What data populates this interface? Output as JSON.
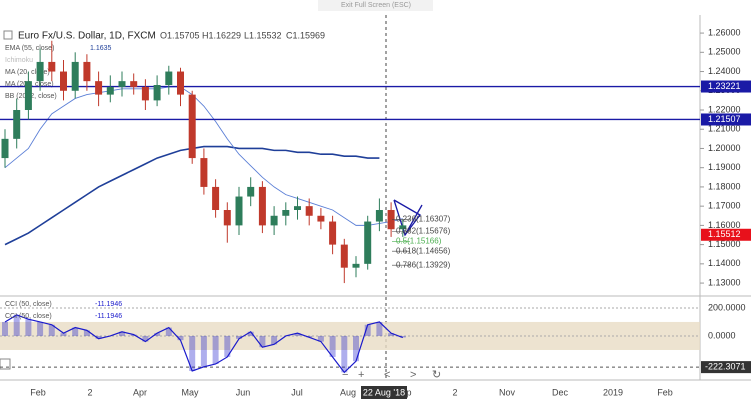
{
  "chart_data": {
    "type": "candlestick",
    "fullscreen_hint": "Exit Full Screen (ESC)",
    "title": "Euro Fx/U.S. Dollar, 1D, FXCM",
    "ohlc_readout": [
      "O1.15705",
      "H1.16229",
      "L1.15532",
      "C1.15969"
    ],
    "indicator_legend": [
      {
        "name": "EMA (55, close)",
        "value_label": "1.1635"
      },
      {
        "name": "Ichimoku"
      },
      {
        "name": "MA (20, close)"
      },
      {
        "name": "MA (200, close)"
      },
      {
        "name": "BB (20, 2, close)"
      }
    ],
    "up_color": "#2e7d5b",
    "down_color": "#c0392b",
    "open": [
      1.195,
      1.205,
      1.22,
      1.235,
      1.245,
      1.24,
      1.23,
      1.245,
      1.235,
      1.228,
      1.232,
      1.235,
      1.232,
      1.225,
      1.233,
      1.24,
      1.228,
      1.195,
      1.18,
      1.168,
      1.16,
      1.175,
      1.18,
      1.16,
      1.165,
      1.168,
      1.17,
      1.165,
      1.162,
      1.15,
      1.138,
      1.14,
      1.162,
      1.168,
      1.158
    ],
    "high": [
      1.21,
      1.226,
      1.24,
      1.252,
      1.256,
      1.246,
      1.25,
      1.249,
      1.24,
      1.238,
      1.24,
      1.239,
      1.236,
      1.238,
      1.243,
      1.242,
      1.23,
      1.2,
      1.184,
      1.172,
      1.18,
      1.185,
      1.183,
      1.17,
      1.172,
      1.175,
      1.174,
      1.169,
      1.165,
      1.153,
      1.144,
      1.165,
      1.174,
      1.172,
      1.163
    ],
    "low": [
      1.19,
      1.2,
      1.215,
      1.23,
      1.235,
      1.225,
      1.226,
      1.23,
      1.222,
      1.224,
      1.227,
      1.228,
      1.22,
      1.222,
      1.228,
      1.222,
      1.192,
      1.176,
      1.164,
      1.151,
      1.155,
      1.17,
      1.156,
      1.155,
      1.16,
      1.163,
      1.16,
      1.158,
      1.145,
      1.13,
      1.133,
      1.137,
      1.157,
      1.154,
      1.154
    ],
    "close": [
      1.205,
      1.22,
      1.235,
      1.245,
      1.24,
      1.23,
      1.245,
      1.235,
      1.228,
      1.232,
      1.235,
      1.232,
      1.225,
      1.233,
      1.24,
      1.228,
      1.195,
      1.18,
      1.168,
      1.16,
      1.175,
      1.18,
      1.16,
      1.165,
      1.168,
      1.17,
      1.165,
      1.162,
      1.15,
      1.138,
      1.14,
      1.162,
      1.168,
      1.158,
      1.16
    ],
    "series": [
      {
        "name": "MA (200, close)",
        "color": "#1f3f99",
        "values": [
          1.15,
          1.153,
          1.156,
          1.16,
          1.164,
          1.168,
          1.172,
          1.176,
          1.18,
          1.183,
          1.186,
          1.189,
          1.192,
          1.195,
          1.197,
          1.199,
          1.2,
          1.201,
          1.201,
          1.201,
          1.2,
          1.2,
          1.2,
          1.199,
          1.199,
          1.198,
          1.198,
          1.197,
          1.197,
          1.196,
          1.196,
          1.195,
          1.195,
          null,
          null
        ]
      },
      {
        "name": "EMA (55, close)",
        "color": "#5b7fd6",
        "values": [
          1.19,
          1.195,
          1.2,
          1.21,
          1.218,
          1.222,
          1.226,
          1.228,
          1.229,
          1.23,
          1.231,
          1.231,
          1.231,
          1.231,
          1.232,
          1.232,
          1.228,
          1.222,
          1.214,
          1.205,
          1.197,
          1.191,
          1.185,
          1.18,
          1.176,
          1.174,
          1.172,
          1.17,
          1.168,
          1.164,
          1.16,
          1.16,
          1.161,
          1.162,
          1.1635
        ]
      }
    ],
    "ylim": [
      1.1238,
      1.2668
    ],
    "yticks": [
      {
        "value": 1.26,
        "label": "1.26000"
      },
      {
        "value": 1.25,
        "label": "1.25000"
      },
      {
        "value": 1.24,
        "label": "1.24000"
      },
      {
        "value": 1.23,
        "label": "1.23000"
      },
      {
        "value": 1.22,
        "label": "1.22000"
      },
      {
        "value": 1.21,
        "label": "1.21000"
      },
      {
        "value": 1.2,
        "label": "1.20000"
      },
      {
        "value": 1.19,
        "label": "1.19000"
      },
      {
        "value": 1.18,
        "label": "1.18000"
      },
      {
        "value": 1.17,
        "label": "1.17000"
      },
      {
        "value": 1.16,
        "label": "1.16000"
      },
      {
        "value": 1.15,
        "label": "1.15000"
      },
      {
        "value": 1.14,
        "label": "1.14000"
      },
      {
        "value": 1.13,
        "label": "1.13000"
      }
    ],
    "levels": [
      {
        "value": 1.23221,
        "label": "1.23221",
        "color": "#1a1aa6"
      },
      {
        "value": 1.21507,
        "label": "1.21507",
        "color": "#1a1aa6"
      }
    ],
    "last_price": {
      "value": 1.15512,
      "label": "1.15512",
      "color": "#e8111b"
    },
    "fib_levels": [
      {
        "value": 1.16307,
        "label": "0.236(1.16307)",
        "color": "#444"
      },
      {
        "value": 1.15676,
        "label": "0.382(1.15676)",
        "color": "#444"
      },
      {
        "value": 1.15166,
        "label": "0.5(1.15166)",
        "color": "#4caf50"
      },
      {
        "value": 1.14656,
        "label": "0.618(1.14656)",
        "color": "#444"
      },
      {
        "value": 1.13929,
        "label": "0.786(1.13929)",
        "color": "#444"
      }
    ],
    "oscillator": {
      "legend": [
        {
          "name": "CCI (50, close)",
          "value_label": "-11.1946"
        },
        {
          "name": "CCI (50, close)",
          "value_label": "-11.1946"
        }
      ],
      "color": "#1a1acc",
      "values": [
        100,
        150,
        120,
        100,
        80,
        20,
        60,
        40,
        -20,
        0,
        30,
        10,
        -40,
        20,
        60,
        -30,
        -250,
        -220,
        -200,
        -150,
        -20,
        30,
        -80,
        -60,
        0,
        20,
        -10,
        -40,
        -150,
        -260,
        -180,
        80,
        100,
        20,
        -11
      ],
      "ylim": [
        -300,
        271
      ],
      "yticks": [
        {
          "value": 200,
          "label": "200.0000"
        },
        {
          "value": 0,
          "label": "0.0000"
        }
      ],
      "band": [
        -100,
        100
      ],
      "level": {
        "value": -222.3071,
        "label": "-222.3071"
      }
    },
    "x_axis_labels": [
      "Feb",
      "2",
      "Apr",
      "May",
      "Jun",
      "Jul",
      "Aug",
      "22 Aug '18",
      "p",
      "2",
      "Nov",
      "Dec",
      "2019",
      "Feb"
    ]
  }
}
